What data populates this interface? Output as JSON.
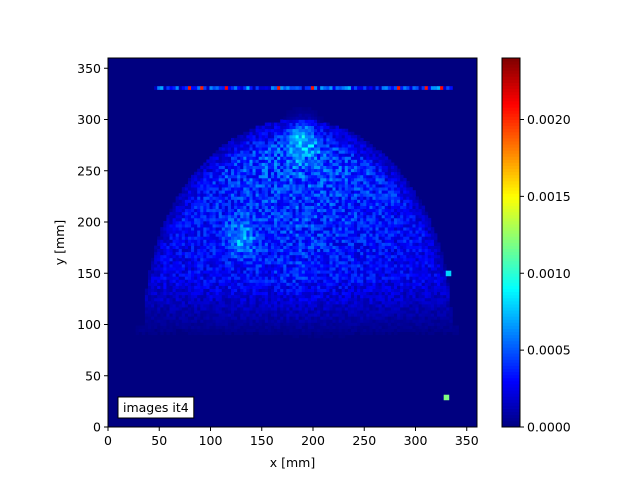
{
  "chart_data": {
    "type": "heatmap",
    "title": "",
    "xlabel": "x [mm]",
    "ylabel": "y [mm]",
    "xlim": [
      0,
      360
    ],
    "ylim": [
      0,
      360
    ],
    "xticks": [
      0,
      50,
      100,
      150,
      200,
      250,
      300,
      350
    ],
    "yticks": [
      0,
      50,
      100,
      150,
      200,
      250,
      300,
      350
    ],
    "colormap": "jet",
    "colorbar": {
      "vmin": 0.0,
      "vmax": 0.0024,
      "ticks": [
        "0.0000",
        "0.0005",
        "0.0010",
        "0.0015",
        "0.0020"
      ],
      "tick_values": [
        0.0,
        0.0005,
        0.001,
        0.0015,
        0.002
      ]
    },
    "annotation": "images it4",
    "annotation_location": "lower-left",
    "background_value": 0.0,
    "features": [
      {
        "kind": "dome",
        "center_x": 185,
        "center_y": 195,
        "half_width_x": 150,
        "peak_y": 300,
        "base_y": 100,
        "peak_value": 0.0006
      },
      {
        "kind": "hot-spot",
        "x": 190,
        "y": 282,
        "value": 0.0007
      },
      {
        "kind": "hot-spot",
        "x": 130,
        "y": 185,
        "value": 0.0006
      },
      {
        "kind": "row-line",
        "y": 331,
        "x_start": 45,
        "x_end": 335,
        "typical_value": 0.0005,
        "peak_value": 0.0021
      },
      {
        "kind": "point",
        "x": 329,
        "y": 30,
        "value": 0.0012
      },
      {
        "kind": "point",
        "x": 331,
        "y": 151,
        "value": 0.0008
      }
    ]
  }
}
